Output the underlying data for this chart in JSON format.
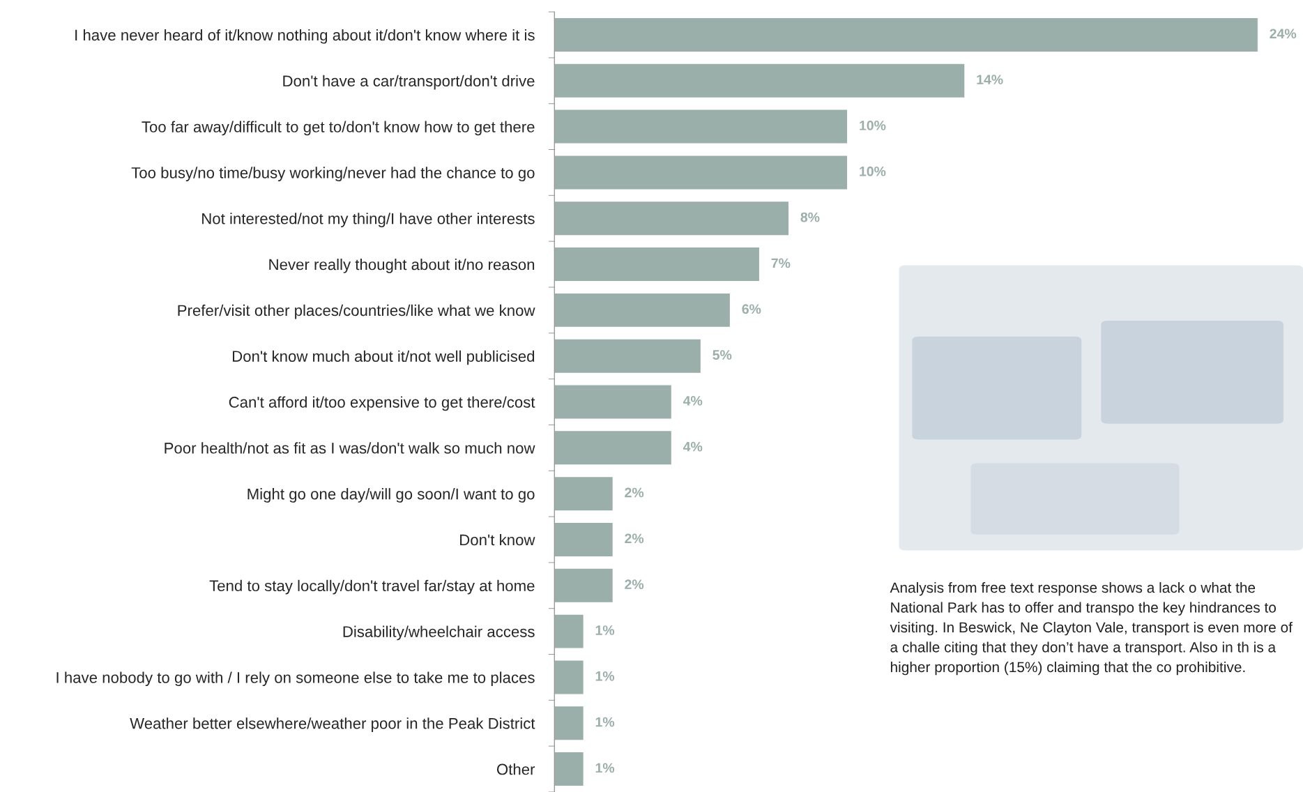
{
  "chart_data": {
    "type": "bar",
    "orientation": "horizontal",
    "categories": [
      "I have never heard of it/know nothing about it/don't know where it is",
      "Don't have a car/transport/don't drive",
      "Too far away/difficult to get to/don't know how to get there",
      "Too busy/no time/busy working/never had the chance to go",
      "Not interested/not my thing/I have other interests",
      "Never really thought about it/no reason",
      "Prefer/visit other places/countries/like what we know",
      "Don't know much about it/not well publicised",
      "Can't afford it/too expensive to get there/cost",
      "Poor health/not as fit as I was/don't walk so much now",
      "Might go one day/will go soon/I want to go",
      "Don't know",
      "Tend to stay locally/don't travel far/stay at home",
      "Disability/wheelchair access",
      "I have nobody to go with / I rely on someone else to take me to places",
      "Weather better elsewhere/weather poor in the Peak District",
      "Other"
    ],
    "series": [
      {
        "color": "#9aaeaa",
        "values": [
          24,
          14,
          10,
          10,
          8,
          7,
          6,
          5,
          4,
          4,
          2,
          2,
          2,
          1,
          1,
          1,
          1
        ],
        "value_labels": [
          "24%",
          "14%",
          "10%",
          "10%",
          "8%",
          "7%",
          "6%",
          "5%",
          "4%",
          "4%",
          "2%",
          "2%",
          "2%",
          "1%",
          "1%",
          "1%",
          "1%"
        ]
      }
    ],
    "annotations": [
      "Analysis from free text response shows a lack o what the National Park has to offer and transpo the key hindrances to visiting. In Beswick, Ne Clayton Vale, transport is even more of a challe citing that they don’t have a transport. Also in th is a higher proportion (15%) claiming that the co prohibitive."
    ],
    "grid": false,
    "legend": false
  }
}
